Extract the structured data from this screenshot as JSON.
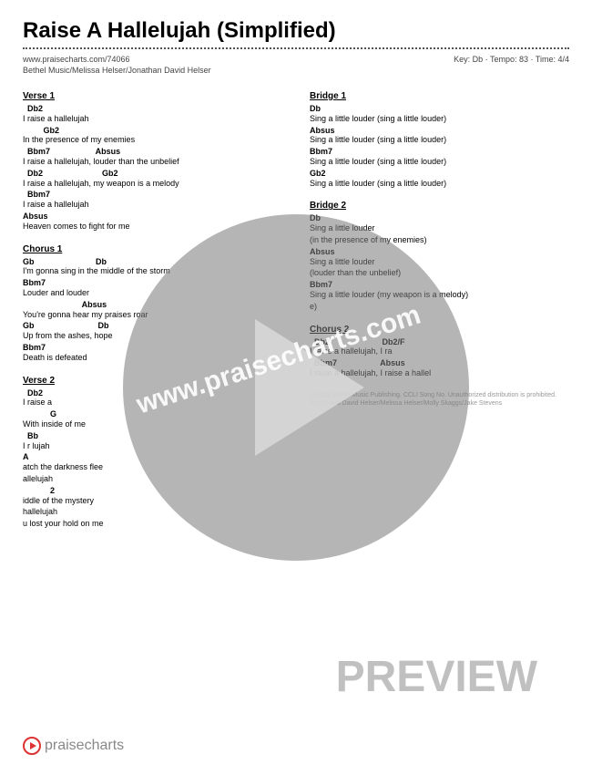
{
  "title": "Raise A Hallelujah (Simplified)",
  "url": "www.praisecharts.com/74066",
  "meta": "Key: Db · Tempo: 83 · Time: 4/4",
  "artists": "Bethel Music/Melissa Helser/Jonathan David Helser",
  "watermark_url": "www.praisecharts.com",
  "preview": "PREVIEW",
  "footer_brand": "praisecharts",
  "copyright": "© 2018 Bethel Music Publishing. CCLI Song No.\nUnauthorized distribution is prohibited. Words and\nDavid Helser/Melissa Helser/Molly Skaggs/Jake Stevens",
  "left": [
    {
      "title": "Verse 1",
      "lines": [
        {
          "c": "  Db2",
          "l": "I raise a hallelujah"
        },
        {
          "c": "         Gb2",
          "l": "In the presence of my enemies"
        },
        {
          "c": "  Bbm7                    Absus",
          "l": "I raise a hallelujah, louder than the unbelief"
        },
        {
          "c": "  Db2                          Gb2",
          "l": "I raise a hallelujah, my weapon is a melody"
        },
        {
          "c": "  Bbm7",
          "l": "I raise a hallelujah"
        },
        {
          "c": "Absus",
          "l": "Heaven comes to fight for me"
        }
      ]
    },
    {
      "title": "Chorus 1",
      "lines": [
        {
          "c": "Gb                           Db",
          "l": "I'm gonna sing in the middle of the storm"
        },
        {
          "c": "Bbm7",
          "l": "Louder and louder"
        },
        {
          "c": "                          Absus",
          "l": "You're gonna  hear  my praises roar"
        },
        {
          "c": "Gb                            Db",
          "l": "Up from the ashes, hope"
        },
        {
          "c": "Bbm7",
          "l": "Death is defeated"
        }
      ]
    },
    {
      "title": "Verse 2",
      "lines": [
        {
          "c": "  Db2",
          "l": "I raise a"
        },
        {
          "c": "            G",
          "l": "With              inside of me"
        },
        {
          "c": "  Bb",
          "l": "I r            lujah"
        },
        {
          "c": "A",
          "l": "            atch the darkness flee"
        },
        {
          "c": "",
          "l": "          allelujah"
        },
        {
          "c": "            2",
          "l": "            iddle of the mystery"
        },
        {
          "c": "",
          "l": "            hallelujah"
        },
        {
          "c": "",
          "l": "            u lost your hold on me"
        }
      ]
    }
  ],
  "right": [
    {
      "title": "Bridge 1",
      "lines": [
        {
          "c": "Db",
          "l": "Sing a little louder (sing a little louder)"
        },
        {
          "c": "Absus",
          "l": " Sing  a little louder (sing a little louder)"
        },
        {
          "c": "Bbm7",
          "l": " Sing a little louder (sing a little louder)"
        },
        {
          "c": "Gb2",
          "l": "Sing a little louder (sing a little louder)"
        }
      ]
    },
    {
      "title": "Bridge 2",
      "lines": [
        {
          "c": "Db",
          "l": "Sing a little louder"
        },
        {
          "c": "",
          "l": "(in the presence of my enemies)"
        },
        {
          "c": "Absus",
          "l": " Sing  a little louder"
        },
        {
          "c": "",
          "l": "(louder than the unbelief)"
        },
        {
          "c": "Bbm7",
          "l": "Sing a little louder (my weapon is a melody)"
        },
        {
          "c": "",
          "l": ""
        },
        {
          "c": "",
          "l": "                                           e)"
        }
      ]
    },
    {
      "title": "Chorus 2",
      "lines": [
        {
          "c": "  Db2                       Db2/F",
          "l": "I raise a hallelujah,          I  ra"
        },
        {
          "c": "  Bbm7                   Absus",
          "l": "I raise a hallelujah, I raise  a  hallel"
        }
      ]
    }
  ],
  "colors": {
    "text": "#000000",
    "meta": "#444444",
    "watermark_bg": "rgba(120,120,120,0.55)",
    "watermark_tri": "rgba(215,215,215,0.9)",
    "watermark_text": "rgba(255,255,255,0.9)",
    "preview": "rgba(140,140,140,0.55)",
    "accent": "#d33",
    "copyright": "#999999"
  }
}
